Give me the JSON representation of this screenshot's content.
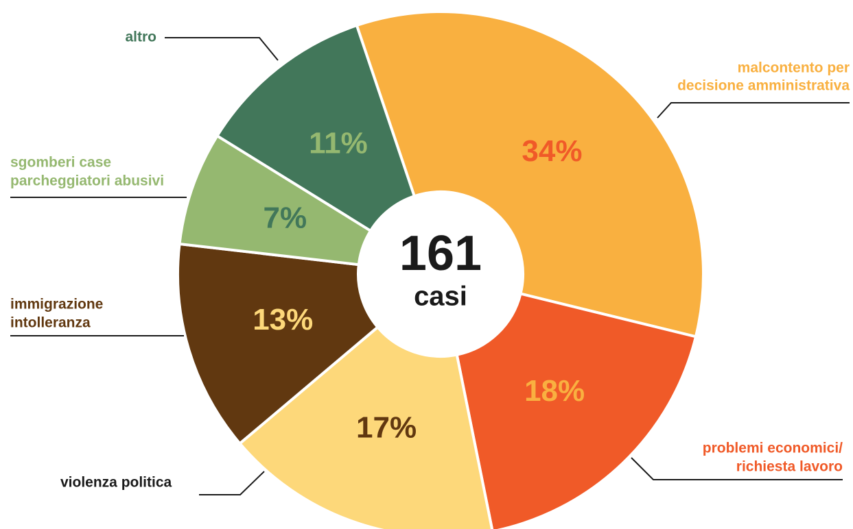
{
  "chart_data": {
    "type": "donut",
    "categories": [
      [
        "malcontento per",
        "decisione amministrativa"
      ],
      [
        "problemi economici/",
        "richiesta lavoro"
      ],
      [
        "violenza politica"
      ],
      [
        "immigrazione",
        "intolleranza"
      ],
      [
        "sgomberi case",
        "parcheggiatori abusivi"
      ],
      [
        "altro"
      ]
    ],
    "values": [
      34,
      18,
      17,
      13,
      7,
      11
    ],
    "value_labels": [
      "34%",
      "18%",
      "17%",
      "13%",
      "7%",
      "11%"
    ],
    "colors": [
      "#f9b040",
      "#f05a28",
      "#fdd87a",
      "#613810",
      "#95b870",
      "#42775a"
    ],
    "value_label_colors": [
      "#f05a28",
      "#f9b040",
      "#613810",
      "#fdd87a",
      "#42775a",
      "#95b870"
    ],
    "category_colors": [
      "#f9b040",
      "#f05a28",
      "#1a1a1a",
      "#613810",
      "#95b870",
      "#42775a"
    ],
    "total": 161,
    "total_label": "casi"
  }
}
